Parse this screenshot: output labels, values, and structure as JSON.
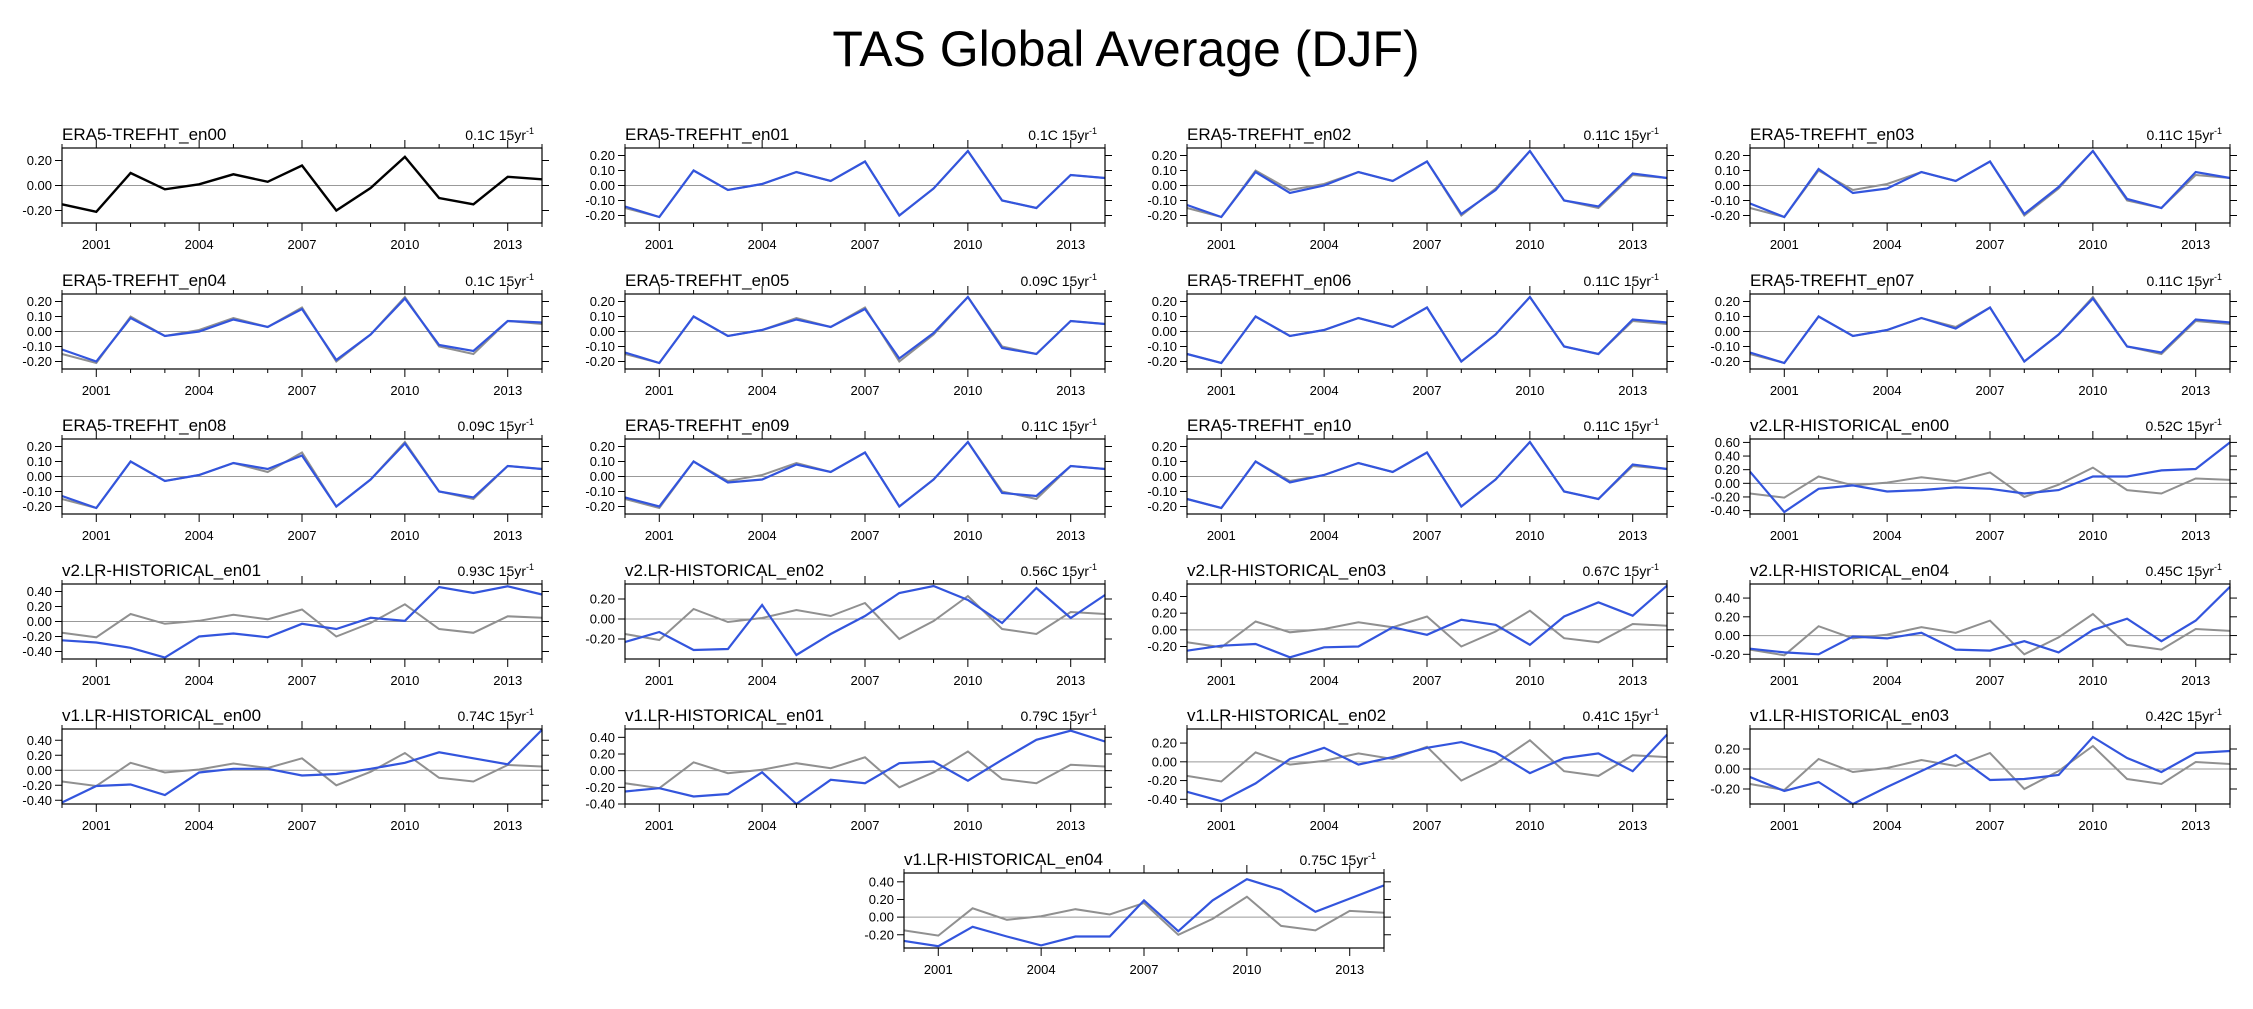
{
  "title": "TAS Global Average (DJF)",
  "chart_data": {
    "type": "line",
    "title": "TAS Global Average (DJF)",
    "x": [
      2000,
      2001,
      2002,
      2003,
      2004,
      2005,
      2006,
      2007,
      2008,
      2009,
      2010,
      2011,
      2012,
      2013,
      2014
    ],
    "x_ticks": [
      2001,
      2004,
      2007,
      2010,
      2013
    ],
    "reference_series": [
      -0.15,
      -0.21,
      0.1,
      -0.03,
      0.01,
      0.09,
      0.03,
      0.16,
      -0.2,
      -0.02,
      0.23,
      -0.1,
      -0.15,
      0.07,
      0.05
    ],
    "colors": {
      "reference": "#000000",
      "reference_overlay": "#909090",
      "member": "#3355dd",
      "zero_line": "#999999"
    },
    "grid": false,
    "panels": [
      {
        "name": "ERA5-TREFHT_en00",
        "trend": "0.1C 15yr",
        "ylim": [
          -0.3,
          0.3
        ],
        "yticks": [
          -0.2,
          0.0,
          0.2
        ],
        "reference_only": true,
        "values": [
          -0.15,
          -0.21,
          0.1,
          -0.03,
          0.01,
          0.09,
          0.03,
          0.16,
          -0.2,
          -0.02,
          0.23,
          -0.1,
          -0.15,
          0.07,
          0.05
        ]
      },
      {
        "name": "ERA5-TREFHT_en01",
        "trend": "0.1C 15yr",
        "ylim": [
          -0.25,
          0.25
        ],
        "yticks": [
          -0.2,
          -0.1,
          0.0,
          0.1,
          0.2
        ],
        "values": [
          -0.14,
          -0.21,
          0.1,
          -0.03,
          0.01,
          0.09,
          0.03,
          0.16,
          -0.2,
          -0.02,
          0.23,
          -0.1,
          -0.15,
          0.07,
          0.05
        ]
      },
      {
        "name": "ERA5-TREFHT_en02",
        "trend": "0.11C 15yr",
        "ylim": [
          -0.25,
          0.25
        ],
        "yticks": [
          -0.2,
          -0.1,
          0.0,
          0.1,
          0.2
        ],
        "values": [
          -0.13,
          -0.21,
          0.09,
          -0.05,
          0.0,
          0.09,
          0.03,
          0.16,
          -0.19,
          -0.03,
          0.23,
          -0.1,
          -0.14,
          0.08,
          0.05
        ]
      },
      {
        "name": "ERA5-TREFHT_en03",
        "trend": "0.11C 15yr",
        "ylim": [
          -0.25,
          0.25
        ],
        "yticks": [
          -0.2,
          -0.1,
          0.0,
          0.1,
          0.2
        ],
        "values": [
          -0.12,
          -0.21,
          0.11,
          -0.05,
          -0.02,
          0.09,
          0.03,
          0.16,
          -0.19,
          -0.01,
          0.23,
          -0.09,
          -0.15,
          0.09,
          0.05
        ]
      },
      {
        "name": "ERA5-TREFHT_en04",
        "trend": "0.1C 15yr",
        "ylim": [
          -0.25,
          0.25
        ],
        "yticks": [
          -0.2,
          -0.1,
          0.0,
          0.1,
          0.2
        ],
        "values": [
          -0.12,
          -0.2,
          0.09,
          -0.03,
          0.0,
          0.08,
          0.03,
          0.15,
          -0.19,
          -0.02,
          0.22,
          -0.09,
          -0.13,
          0.07,
          0.06
        ]
      },
      {
        "name": "ERA5-TREFHT_en05",
        "trend": "0.09C 15yr",
        "ylim": [
          -0.25,
          0.25
        ],
        "yticks": [
          -0.2,
          -0.1,
          0.0,
          0.1,
          0.2
        ],
        "values": [
          -0.14,
          -0.21,
          0.1,
          -0.03,
          0.01,
          0.08,
          0.03,
          0.15,
          -0.18,
          -0.01,
          0.23,
          -0.11,
          -0.15,
          0.07,
          0.05
        ]
      },
      {
        "name": "ERA5-TREFHT_en06",
        "trend": "0.11C 15yr",
        "ylim": [
          -0.25,
          0.25
        ],
        "yticks": [
          -0.2,
          -0.1,
          0.0,
          0.1,
          0.2
        ],
        "values": [
          -0.15,
          -0.21,
          0.1,
          -0.03,
          0.01,
          0.09,
          0.03,
          0.16,
          -0.2,
          -0.02,
          0.23,
          -0.1,
          -0.15,
          0.08,
          0.06
        ]
      },
      {
        "name": "ERA5-TREFHT_en07",
        "trend": "0.11C 15yr",
        "ylim": [
          -0.25,
          0.25
        ],
        "yticks": [
          -0.2,
          -0.1,
          0.0,
          0.1,
          0.2
        ],
        "values": [
          -0.14,
          -0.21,
          0.1,
          -0.03,
          0.01,
          0.09,
          0.02,
          0.16,
          -0.2,
          -0.02,
          0.22,
          -0.1,
          -0.14,
          0.08,
          0.06
        ]
      },
      {
        "name": "ERA5-TREFHT_en08",
        "trend": "0.09C 15yr",
        "ylim": [
          -0.25,
          0.25
        ],
        "yticks": [
          -0.2,
          -0.1,
          0.0,
          0.1,
          0.2
        ],
        "values": [
          -0.13,
          -0.21,
          0.1,
          -0.03,
          0.01,
          0.09,
          0.05,
          0.14,
          -0.2,
          -0.02,
          0.22,
          -0.1,
          -0.14,
          0.07,
          0.05
        ]
      },
      {
        "name": "ERA5-TREFHT_en09",
        "trend": "0.11C 15yr",
        "ylim": [
          -0.25,
          0.25
        ],
        "yticks": [
          -0.2,
          -0.1,
          0.0,
          0.1,
          0.2
        ],
        "values": [
          -0.14,
          -0.2,
          0.1,
          -0.04,
          -0.02,
          0.08,
          0.03,
          0.16,
          -0.2,
          -0.02,
          0.23,
          -0.11,
          -0.13,
          0.07,
          0.05
        ]
      },
      {
        "name": "ERA5-TREFHT_en10",
        "trend": "0.11C 15yr",
        "ylim": [
          -0.25,
          0.25
        ],
        "yticks": [
          -0.2,
          -0.1,
          0.0,
          0.1,
          0.2
        ],
        "values": [
          -0.15,
          -0.21,
          0.1,
          -0.04,
          0.01,
          0.09,
          0.03,
          0.16,
          -0.2,
          -0.02,
          0.23,
          -0.1,
          -0.15,
          0.08,
          0.05
        ]
      },
      {
        "name": "v2.LR-HISTORICAL_en00",
        "trend": "0.52C 15yr",
        "ylim": [
          -0.45,
          0.65
        ],
        "yticks": [
          -0.4,
          -0.2,
          0.0,
          0.2,
          0.4,
          0.6
        ],
        "values": [
          0.17,
          -0.42,
          -0.08,
          -0.03,
          -0.12,
          -0.1,
          -0.06,
          -0.08,
          -0.15,
          -0.1,
          0.1,
          0.1,
          0.19,
          0.21,
          0.6
        ]
      },
      {
        "name": "v2.LR-HISTORICAL_en01",
        "trend": "0.93C 15yr",
        "ylim": [
          -0.5,
          0.5
        ],
        "yticks": [
          -0.4,
          -0.2,
          0.0,
          0.2,
          0.4
        ],
        "values": [
          -0.25,
          -0.28,
          -0.35,
          -0.48,
          -0.2,
          -0.16,
          -0.21,
          -0.03,
          -0.1,
          0.05,
          0.01,
          0.46,
          0.38,
          0.47,
          0.36
        ]
      },
      {
        "name": "v2.LR-HISTORICAL_en02",
        "trend": "0.56C 15yr",
        "ylim": [
          -0.4,
          0.35
        ],
        "yticks": [
          -0.2,
          0.0,
          0.2
        ],
        "values": [
          -0.23,
          -0.13,
          -0.31,
          -0.3,
          0.14,
          -0.36,
          -0.15,
          0.03,
          0.26,
          0.33,
          0.19,
          -0.04,
          0.31,
          0.01,
          0.24
        ]
      },
      {
        "name": "v2.LR-HISTORICAL_en03",
        "trend": "0.67C 15yr",
        "ylim": [
          -0.35,
          0.55
        ],
        "yticks": [
          -0.2,
          0.0,
          0.2,
          0.4
        ],
        "values": [
          -0.25,
          -0.19,
          -0.17,
          -0.33,
          -0.21,
          -0.2,
          0.03,
          -0.06,
          0.12,
          0.06,
          -0.18,
          0.16,
          0.33,
          0.17,
          0.53
        ]
      },
      {
        "name": "v2.LR-HISTORICAL_en04",
        "trend": "0.45C 15yr",
        "ylim": [
          -0.25,
          0.55
        ],
        "yticks": [
          -0.2,
          0.0,
          0.2,
          0.4
        ],
        "values": [
          -0.14,
          -0.18,
          -0.2,
          -0.01,
          -0.03,
          0.03,
          -0.15,
          -0.16,
          -0.06,
          -0.18,
          0.06,
          0.18,
          -0.06,
          0.16,
          0.52
        ]
      },
      {
        "name": "v1.LR-HISTORICAL_en00",
        "trend": "0.74C 15yr",
        "ylim": [
          -0.45,
          0.55
        ],
        "yticks": [
          -0.4,
          -0.2,
          0.0,
          0.2,
          0.4
        ],
        "values": [
          -0.43,
          -0.21,
          -0.19,
          -0.33,
          -0.03,
          0.02,
          0.02,
          -0.07,
          -0.05,
          0.02,
          0.1,
          0.24,
          0.16,
          0.08,
          0.54
        ]
      },
      {
        "name": "v1.LR-HISTORICAL_en01",
        "trend": "0.79C 15yr",
        "ylim": [
          -0.4,
          0.5
        ],
        "yticks": [
          -0.4,
          -0.2,
          0.0,
          0.2,
          0.4
        ],
        "values": [
          -0.25,
          -0.21,
          -0.31,
          -0.28,
          -0.02,
          -0.4,
          -0.11,
          -0.15,
          0.09,
          0.11,
          -0.12,
          0.13,
          0.37,
          0.48,
          0.35
        ]
      },
      {
        "name": "v1.LR-HISTORICAL_en02",
        "trend": "0.41C 15yr",
        "ylim": [
          -0.45,
          0.35
        ],
        "yticks": [
          -0.4,
          -0.2,
          0.0,
          0.2
        ],
        "values": [
          -0.32,
          -0.42,
          -0.23,
          0.03,
          0.15,
          -0.03,
          0.05,
          0.15,
          0.21,
          0.1,
          -0.12,
          0.04,
          0.09,
          -0.1,
          0.29
        ]
      },
      {
        "name": "v1.LR-HISTORICAL_en03",
        "trend": "0.42C 15yr",
        "ylim": [
          -0.35,
          0.4
        ],
        "yticks": [
          -0.2,
          0.0,
          0.2
        ],
        "values": [
          -0.08,
          -0.22,
          -0.13,
          -0.35,
          -0.18,
          -0.02,
          0.14,
          -0.11,
          -0.1,
          -0.06,
          0.32,
          0.11,
          -0.03,
          0.16,
          0.18
        ]
      },
      {
        "name": "v1.LR-HISTORICAL_en04",
        "trend": "0.75C 15yr",
        "ylim": [
          -0.35,
          0.5
        ],
        "yticks": [
          -0.2,
          0.0,
          0.2,
          0.4
        ],
        "values": [
          -0.27,
          -0.33,
          -0.11,
          -0.22,
          -0.32,
          -0.22,
          -0.22,
          0.19,
          -0.16,
          0.19,
          0.43,
          0.31,
          0.06,
          0.21,
          0.36
        ]
      }
    ]
  }
}
